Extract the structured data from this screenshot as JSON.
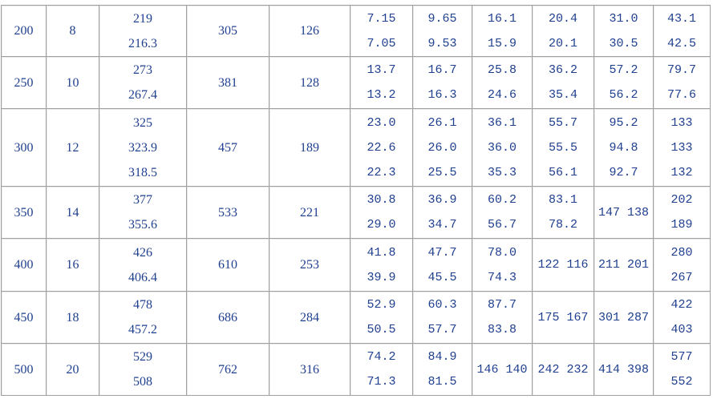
{
  "table": {
    "rows": [
      [
        [
          "200"
        ],
        [
          "8"
        ],
        [
          "219",
          "216.3"
        ],
        [
          "305"
        ],
        [
          "126"
        ],
        [
          "7.15",
          "7.05"
        ],
        [
          "9.65",
          "9.53"
        ],
        [
          "16.1",
          "15.9"
        ],
        [
          "20.4",
          "20.1"
        ],
        [
          "31.0",
          "30.5"
        ],
        [
          "43.1",
          "42.5"
        ]
      ],
      [
        [
          "250"
        ],
        [
          "10"
        ],
        [
          "273",
          "267.4"
        ],
        [
          "381"
        ],
        [
          "128"
        ],
        [
          "13.7",
          "13.2"
        ],
        [
          "16.7",
          "16.3"
        ],
        [
          "25.8",
          "24.6"
        ],
        [
          "36.2",
          "35.4"
        ],
        [
          "57.2",
          "56.2"
        ],
        [
          "79.7",
          "77.6"
        ]
      ],
      [
        [
          "300"
        ],
        [
          "12"
        ],
        [
          "325",
          "323.9",
          "318.5"
        ],
        [
          "457"
        ],
        [
          "189"
        ],
        [
          "23.0",
          "22.6",
          "22.3"
        ],
        [
          "26.1",
          "26.0",
          "25.5"
        ],
        [
          "36.1",
          "36.0",
          "35.3"
        ],
        [
          "55.7",
          "55.5",
          "56.1"
        ],
        [
          "95.2",
          "94.8",
          "92.7"
        ],
        [
          "133",
          "133",
          "132"
        ]
      ],
      [
        [
          "350"
        ],
        [
          "14"
        ],
        [
          "377",
          "355.6"
        ],
        [
          "533"
        ],
        [
          "221"
        ],
        [
          "30.8",
          "29.0"
        ],
        [
          "36.9",
          "34.7"
        ],
        [
          "60.2",
          "56.7"
        ],
        [
          "83.1",
          "78.2"
        ],
        [
          "147 138"
        ],
        [
          "202",
          "189"
        ]
      ],
      [
        [
          "400"
        ],
        [
          "16"
        ],
        [
          "426",
          "406.4"
        ],
        [
          "610"
        ],
        [
          "253"
        ],
        [
          "41.8",
          "39.9"
        ],
        [
          "47.7",
          "45.5"
        ],
        [
          "78.0",
          "74.3"
        ],
        [
          "122 116"
        ],
        [
          "211 201"
        ],
        [
          "280",
          "267"
        ]
      ],
      [
        [
          "450"
        ],
        [
          "18"
        ],
        [
          "478",
          "457.2"
        ],
        [
          "686"
        ],
        [
          "284"
        ],
        [
          "52.9",
          "50.5"
        ],
        [
          "60.3",
          "57.7"
        ],
        [
          "87.7",
          "83.8"
        ],
        [
          "175 167"
        ],
        [
          "301 287"
        ],
        [
          "422",
          "403"
        ]
      ],
      [
        [
          "500"
        ],
        [
          "20"
        ],
        [
          "529",
          "508"
        ],
        [
          "762"
        ],
        [
          "316"
        ],
        [
          "74.2",
          "71.3"
        ],
        [
          "84.9",
          "81.5"
        ],
        [
          "146 140"
        ],
        [
          "242 232"
        ],
        [
          "414 398"
        ],
        [
          "577",
          "552"
        ]
      ]
    ]
  }
}
